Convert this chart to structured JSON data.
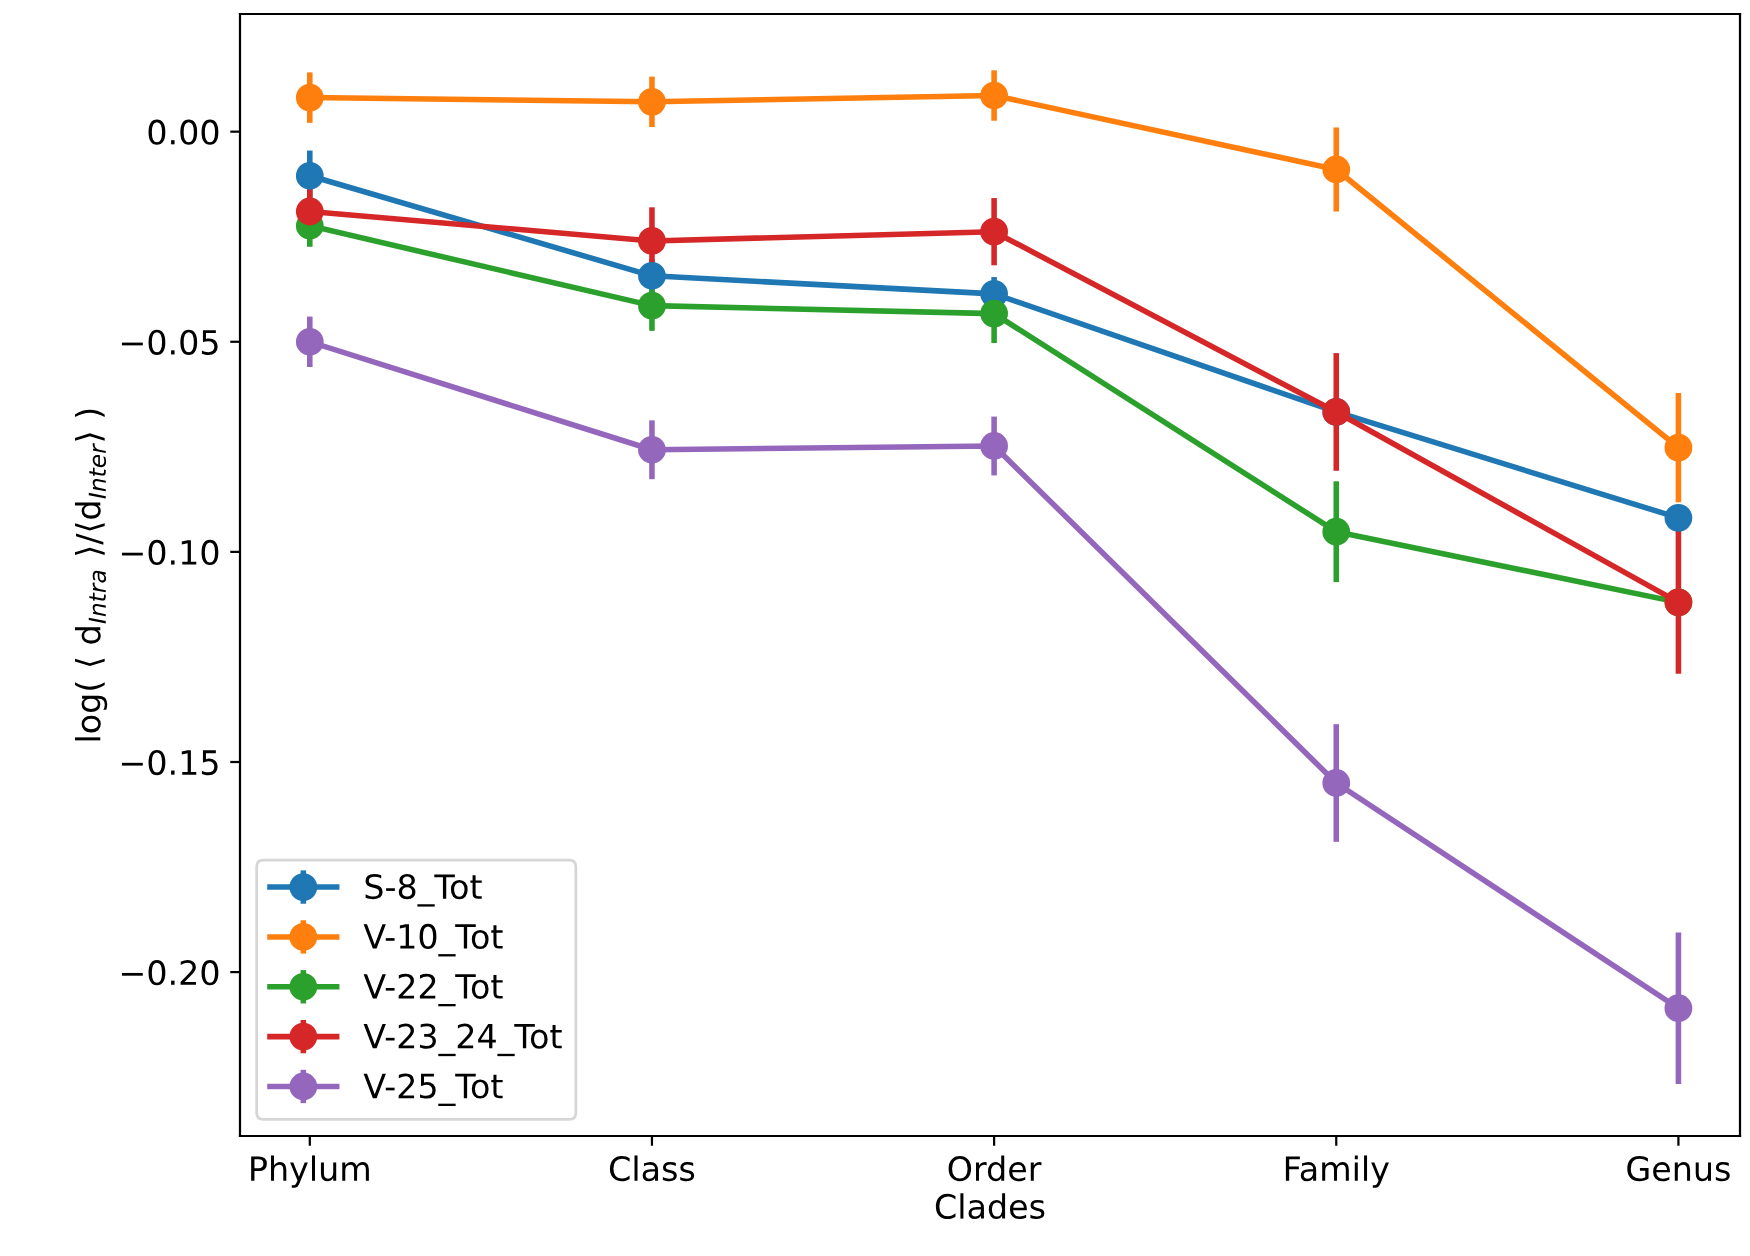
{
  "chart_data": {
    "type": "line",
    "xlabel": "Clades",
    "ylabel": "log( ⟨ d$_{Intra}$ ⟩/⟨d$_{Inter}$⟩ )",
    "categories": [
      "Phylum",
      "Class",
      "Order",
      "Family",
      "Genus"
    ],
    "ylim": [
      -0.239,
      0.028
    ],
    "yticks": [
      {
        "value": 0,
        "label": "0.00"
      },
      {
        "value": -0.05,
        "label": "−0.05"
      },
      {
        "value": -0.1,
        "label": "−0.10"
      },
      {
        "value": -0.15,
        "label": "−0.15"
      },
      {
        "value": -0.2,
        "label": "−0.20"
      }
    ],
    "grid": false,
    "legend": "bottom left",
    "marker": "circle",
    "line_style": "solid",
    "series": [
      {
        "name": "S-8_Tot",
        "color": "#1f77b4",
        "values": [
          -0.0105,
          -0.0343,
          -0.0386,
          -0.0667,
          -0.0919
        ],
        "errors": [
          0.006,
          0.004,
          0.004,
          null,
          0.003
        ]
      },
      {
        "name": "V-10_Tot",
        "color": "#ff7f0e",
        "values": [
          0.0081,
          0.0071,
          0.0086,
          -0.009,
          -0.0752
        ],
        "errors": [
          0.006,
          0.006,
          0.006,
          0.01,
          0.013
        ]
      },
      {
        "name": "V-22_Tot",
        "color": "#2ca02c",
        "values": [
          -0.0224,
          -0.0414,
          -0.0433,
          -0.0952,
          -0.112
        ],
        "errors": [
          0.005,
          0.006,
          0.007,
          0.012,
          null
        ]
      },
      {
        "name": "V-23_24_Tot",
        "color": "#d62728",
        "values": [
          -0.019,
          -0.026,
          -0.0238,
          -0.0667,
          -0.112
        ],
        "errors": [
          0.006,
          0.008,
          0.008,
          0.014,
          0.017
        ]
      },
      {
        "name": "V-25_Tot",
        "color": "#9467bd",
        "values": [
          -0.05,
          -0.0757,
          -0.0748,
          -0.155,
          -0.2086
        ],
        "errors": [
          0.006,
          0.007,
          0.007,
          0.014,
          0.018
        ]
      }
    ]
  }
}
